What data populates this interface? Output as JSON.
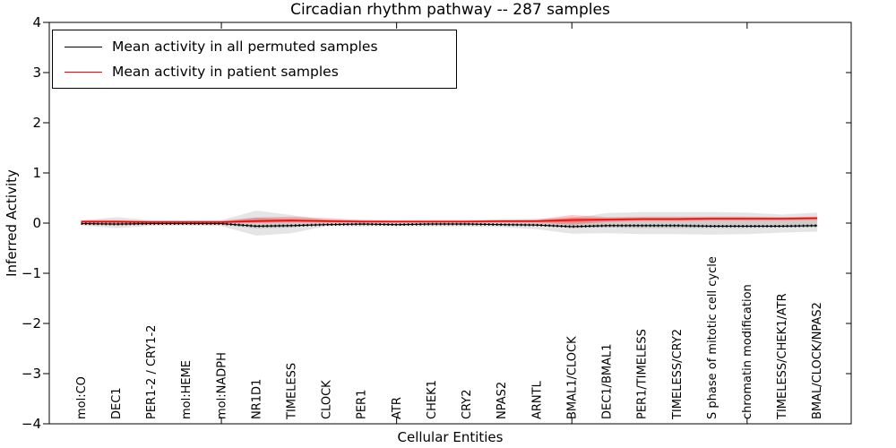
{
  "title": "Circadian rhythm pathway -- 287 samples",
  "axes": {
    "ylabel": "Inferred Activity",
    "xlabel": "Cellular Entities",
    "y_ticks": [
      {
        "value": 4,
        "label": "4"
      },
      {
        "value": 3,
        "label": "3"
      },
      {
        "value": 2,
        "label": "2"
      },
      {
        "value": 1,
        "label": "1"
      },
      {
        "value": 0,
        "label": "0"
      },
      {
        "value": -1,
        "label": "−1"
      },
      {
        "value": -2,
        "label": "−2"
      },
      {
        "value": -3,
        "label": "−3"
      },
      {
        "value": -4,
        "label": "−4"
      }
    ],
    "x_tick_values": [
      5,
      10,
      15,
      20
    ]
  },
  "colors": {
    "permuted_line": "#000000",
    "patient_line": "#ff0000",
    "envelope_gray": "#000000",
    "envelope_red": "#ff0000",
    "frame": "#000000"
  },
  "chart_data": {
    "type": "line",
    "title": "Circadian rhythm pathway -- 287 samples",
    "xlabel": "Cellular Entities",
    "ylabel": "Inferred Activity",
    "ylim": [
      -4,
      4
    ],
    "grid": false,
    "legend_position": "upper left",
    "categories": [
      "mol:CO",
      "DEC1",
      "PER1-2 / CRY1-2",
      "mol:HEME",
      "mol:NADPH",
      "NR1D1",
      "TIMELESS",
      "CLOCK",
      "PER1",
      "ATR",
      "CHEK1",
      "CRY2",
      "NPAS2",
      "ARNTL",
      "BMAL1/CLOCK",
      "DEC1/BMAL1",
      "PER1/TIMELESS",
      "TIMELESS/CRY2",
      "S phase of mitotic cell cycle",
      "chromatin modification",
      "TIMELESS/CHEK1/ATR",
      "BMAL/CLOCK/NPAS2"
    ],
    "series": [
      {
        "name": "Mean activity in all permuted samples",
        "color": "#000000",
        "values": [
          -0.01,
          -0.02,
          -0.01,
          -0.01,
          -0.01,
          -0.06,
          -0.05,
          -0.03,
          -0.02,
          -0.03,
          -0.02,
          -0.02,
          -0.03,
          -0.04,
          -0.07,
          -0.05,
          -0.05,
          -0.05,
          -0.06,
          -0.06,
          -0.06,
          -0.05
        ]
      },
      {
        "name": "Mean activity in patient samples",
        "color": "#ff0000",
        "values": [
          0.03,
          0.03,
          0.02,
          0.02,
          0.02,
          0.04,
          0.05,
          0.04,
          0.03,
          0.03,
          0.03,
          0.03,
          0.04,
          0.04,
          0.06,
          0.07,
          0.08,
          0.08,
          0.09,
          0.09,
          0.09,
          0.1
        ]
      }
    ],
    "bands": [
      {
        "name": "permuted-envelope-outer",
        "upper": [
          0.05,
          0.12,
          0.055,
          0.05,
          0.06,
          0.25,
          0.16,
          0.06,
          0.07,
          0.06,
          0.07,
          0.07,
          0.08,
          0.09,
          0.1,
          0.2,
          0.22,
          0.22,
          0.22,
          0.21,
          0.17,
          0.21
        ],
        "lower": [
          -0.05,
          -0.1,
          -0.055,
          -0.05,
          -0.06,
          -0.25,
          -0.2,
          -0.06,
          -0.07,
          -0.06,
          -0.07,
          -0.07,
          -0.08,
          -0.12,
          -0.21,
          -0.2,
          -0.22,
          -0.22,
          -0.23,
          -0.22,
          -0.19,
          -0.17
        ]
      },
      {
        "name": "permuted-envelope-inner",
        "upper": [
          0.02,
          0.05,
          0.025,
          0.02,
          0.03,
          0.11,
          0.07,
          0.03,
          0.03,
          0.03,
          0.03,
          0.03,
          0.04,
          0.04,
          0.05,
          0.09,
          0.1,
          0.1,
          0.1,
          0.09,
          0.08,
          0.09
        ],
        "lower": [
          -0.02,
          -0.05,
          -0.025,
          -0.02,
          -0.03,
          -0.11,
          -0.09,
          -0.03,
          -0.03,
          -0.03,
          -0.03,
          -0.03,
          -0.04,
          -0.05,
          -0.1,
          -0.09,
          -0.1,
          -0.1,
          -0.1,
          -0.1,
          -0.09,
          -0.08
        ]
      },
      {
        "name": "patient-envelope",
        "upper": [
          0.06,
          0.06,
          0.05,
          0.05,
          0.05,
          0.11,
          0.13,
          0.1,
          0.06,
          0.05,
          0.05,
          0.05,
          0.06,
          0.07,
          0.16,
          0.12,
          0.13,
          0.13,
          0.13,
          0.13,
          0.12,
          0.13
        ],
        "lower": [
          0.0,
          0.0,
          0.0,
          0.0,
          0.0,
          0.0,
          0.01,
          0.01,
          0.01,
          0.01,
          0.01,
          0.01,
          0.01,
          0.01,
          -0.03,
          0.02,
          0.04,
          0.04,
          0.05,
          0.05,
          0.05,
          0.06
        ]
      }
    ]
  }
}
